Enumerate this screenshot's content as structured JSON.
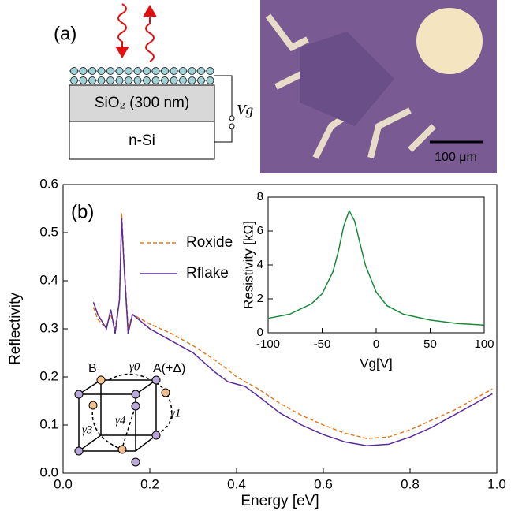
{
  "panel_a": {
    "label": "(a)",
    "layers": [
      "SiO₂ (300 nm)",
      "n-Si"
    ],
    "gate": "Vg",
    "scale_bar": "100 μm"
  },
  "lattice": {
    "labels": [
      "B",
      "γ0",
      "A(+Δ)",
      "γ1",
      "γ3",
      "γ4"
    ]
  },
  "chart_data": [
    {
      "type": "line",
      "panel_label": "(b)",
      "x_label": "Energy [eV]",
      "y_label": "Reflectivity",
      "x": [
        0.07,
        0.08,
        0.09,
        0.1,
        0.11,
        0.12,
        0.13,
        0.135,
        0.14,
        0.15,
        0.16,
        0.2,
        0.25,
        0.3,
        0.35,
        0.38,
        0.4,
        0.42,
        0.45,
        0.5,
        0.55,
        0.6,
        0.65,
        0.7,
        0.75,
        0.8,
        0.85,
        0.9,
        0.95,
        0.99
      ],
      "series": [
        {
          "name": "Roxide",
          "color": "#e07b20",
          "style": "dashed",
          "values": [
            0.345,
            0.32,
            0.31,
            0.305,
            0.33,
            0.3,
            0.36,
            0.54,
            0.45,
            0.3,
            0.33,
            0.31,
            0.29,
            0.265,
            0.235,
            0.215,
            0.2,
            0.19,
            0.175,
            0.145,
            0.12,
            0.1,
            0.083,
            0.072,
            0.075,
            0.09,
            0.11,
            0.13,
            0.155,
            0.175
          ]
        },
        {
          "name": "Rflake",
          "color": "#5a2a9a",
          "style": "solid",
          "values": [
            0.355,
            0.33,
            0.315,
            0.3,
            0.34,
            0.29,
            0.36,
            0.53,
            0.44,
            0.29,
            0.33,
            0.3,
            0.275,
            0.25,
            0.21,
            0.19,
            0.185,
            0.18,
            0.16,
            0.125,
            0.1,
            0.08,
            0.065,
            0.057,
            0.06,
            0.075,
            0.095,
            0.12,
            0.145,
            0.165
          ]
        }
      ],
      "xlim": [
        0,
        1
      ],
      "xticks": [
        {
          "value": 0,
          "label": "0.0"
        },
        0.2,
        0.4,
        0.6,
        0.8,
        {
          "value": 1,
          "label": "1.0"
        }
      ],
      "ylim": [
        0,
        0.6
      ],
      "yticks": [
        {
          "value": 0,
          "label": "0.0"
        },
        0.1,
        0.2,
        0.3,
        0.4,
        0.5,
        0.6
      ]
    },
    {
      "type": "line",
      "x_label": "Vg[V]",
      "y_label": "Resistivity [kΩ]",
      "x": [
        -100,
        -80,
        -60,
        -50,
        -40,
        -35,
        -30,
        -25,
        -20,
        -15,
        -10,
        0,
        10,
        25,
        50,
        75,
        100
      ],
      "series": [
        {
          "color": "#1a8a3a",
          "style": "solid",
          "values": [
            0.85,
            1.1,
            1.7,
            2.3,
            3.6,
            4.8,
            6.3,
            7.2,
            6.6,
            5.3,
            4.0,
            2.4,
            1.6,
            1.1,
            0.75,
            0.55,
            0.45
          ]
        }
      ],
      "xlim": [
        -100,
        100
      ],
      "xticks": [
        -100,
        -50,
        0,
        50,
        100
      ],
      "ylim": [
        0,
        8
      ],
      "yticks": [
        0,
        2,
        4,
        6,
        8
      ]
    }
  ]
}
